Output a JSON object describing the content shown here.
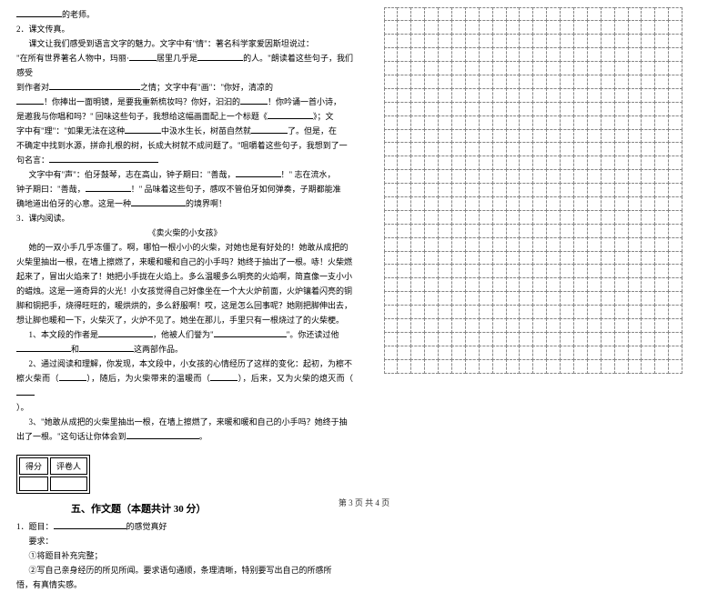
{
  "p1_suffix": "的老师。",
  "q2_label": "2．课文传真。",
  "q2_l1": "课文让我们感受到语言文字的魅力。文字中有\"情\"：著名科学家爱因斯坦说过：",
  "q2_l2a": "\"在所有世界著名人物中，玛丽·",
  "q2_l2b": "居里几乎是",
  "q2_l2c": "的人。\"朗读着这些句子，我们感受",
  "q2_l3a": "到作者对",
  "q2_l3b": "之情；文字中有\"画\"：\"你好，清凉的",
  "q2_l4a": "！你捧出一面明镜，是要我重新梳妆吗？你好，汩汩的",
  "q2_l4b": "！你吟诵一首小诗，",
  "q2_l5a": "是邀我与你唱和吗？\" 回味这些句子，我想给这幅画面配上一个标题《",
  "q2_l5b": "》；文",
  "q2_l6": "字中有\"理\"：\"如果无法在这种",
  "q2_l6b": "中汲水生长，树苗自然就",
  "q2_l6c": "了。但是，在",
  "q2_l7": "不确定中找到水源，拼命扎根的树，长成大树就不成问题了。\"咀嚼着这些句子，我想到了一",
  "q2_l8": "句名言：",
  "q2_l9a": "文字中有\"声\"：伯牙鼓琴，志在高山，钟子期曰：\"善哉，",
  "q2_l9b": "！\" 志在流水，",
  "q2_l10a": "钟子期曰：\"善哉，",
  "q2_l10b": "！\" 品味着这些句子，感叹不管伯牙如何弹奏，子期都能准",
  "q2_l11a": "确地道出伯牙的心意。这是一种",
  "q2_l11b": "的境界啊！",
  "q3_label": "3．课内阅读。",
  "q3_title": "《卖火柴的小女孩》",
  "q3_p1": "她的一双小手几乎冻僵了。啊，哪怕一根小小的火柴，对她也是有好处的！她敢从成把的",
  "q3_p2": "火柴里抽出一根，在墙上擦燃了，来暖和暖和自己的小手吗？她终于抽出了一根。哧！火柴燃",
  "q3_p3": "起来了，冒出火焰来了！她把小手拢在火焰上。多么温暖多么明亮的火焰啊，简直像一支小小",
  "q3_p4": "的蜡烛。这是一道奇异的火光！小女孩觉得自己好像坐在一个大火炉前面，火炉镶着闪亮的铜",
  "q3_p5": "脚和铜把手，烧得旺旺的，暖烘烘的，多么舒服啊！哎，这是怎么回事呢？她刚把脚伸出去，",
  "q3_p6": "想让脚也暖和一下，火柴灭了，火炉不见了。她坐在那儿，手里只有一根烧过了的火柴梗。",
  "q3_q1a": "1、本文段的作者是",
  "q3_q1b": "，他被人们誉为\"",
  "q3_q1c": "\"。你还读过他",
  "q3_q1d": "和",
  "q3_q1e": "这两部作品。",
  "q3_q2a": "2、通过阅读和理解，你发现，本文段中，小女孩的心情经历了这样的变化：起初，为檫不",
  "q3_q2b": "檫火柴而（",
  "q3_q2c": "），随后，为火柴带来的温暖而（",
  "q3_q2d": "），后来，又为火柴的熄灭而（",
  "q3_q2e": "）。",
  "q3_q3a": "3、\"她敢从成把的火柴里抽出一根，在墙上擦燃了，来暖和暖和自己的小手吗？她终于抽",
  "q3_q3b": "出了一根。\"这句话让你体会到",
  "q3_q3c": "。",
  "score_left": "得分",
  "score_right": "评卷人",
  "section5": "五、作文题（本题共计 30 分）",
  "essay_q1a": "1．题目：",
  "essay_q1b": "的感觉真好",
  "essay_req": "要求：",
  "essay_r1": "①将题目补充完整；",
  "essay_r2": "②写自己亲身经历的所见所闻。要求语句通顺，条理清晰，特别要写出自己的所感所",
  "essay_r3": "悟，有真情实感。",
  "footer": "第 3 页  共 4 页",
  "grid": {
    "rows": 27,
    "cols": 22,
    "cell_size": 15.9
  }
}
